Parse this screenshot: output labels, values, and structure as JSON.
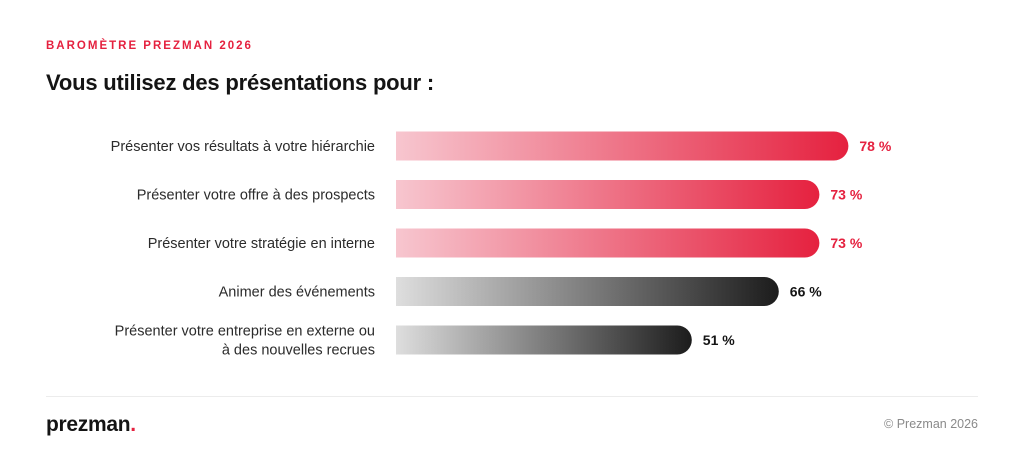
{
  "header": {
    "eyebrow": "BAROMÈTRE PREZMAN 2026",
    "title": "Vous utilisez des présentations pour :"
  },
  "chart_data": {
    "type": "bar",
    "orientation": "horizontal",
    "categories": [
      [
        "Présenter vos résultats à votre hiérarchie"
      ],
      [
        "Présenter votre offre à des prospects"
      ],
      [
        "Présenter votre stratégie en interne"
      ],
      [
        "Animer des événements"
      ],
      [
        "Présenter votre entreprise en externe ou",
        "à des nouvelles recrues"
      ]
    ],
    "values": [
      78,
      73,
      73,
      66,
      51
    ],
    "value_labels": [
      "78 %",
      "73 %",
      "73 %",
      "66 %",
      "51 %"
    ],
    "xlim": [
      0,
      100
    ],
    "grid": false,
    "colors": {
      "highlight_start": "#f7c6cf",
      "highlight_end": "#e5213f",
      "highlight_label": "#e5213f",
      "muted_start": "#dedede",
      "muted_end": "#1c1c1c",
      "muted_label": "#141414"
    },
    "highlight_count": 3
  },
  "footer": {
    "logo_text": "prezman",
    "logo_dot": ".",
    "copyright": "© Prezman 2026"
  }
}
